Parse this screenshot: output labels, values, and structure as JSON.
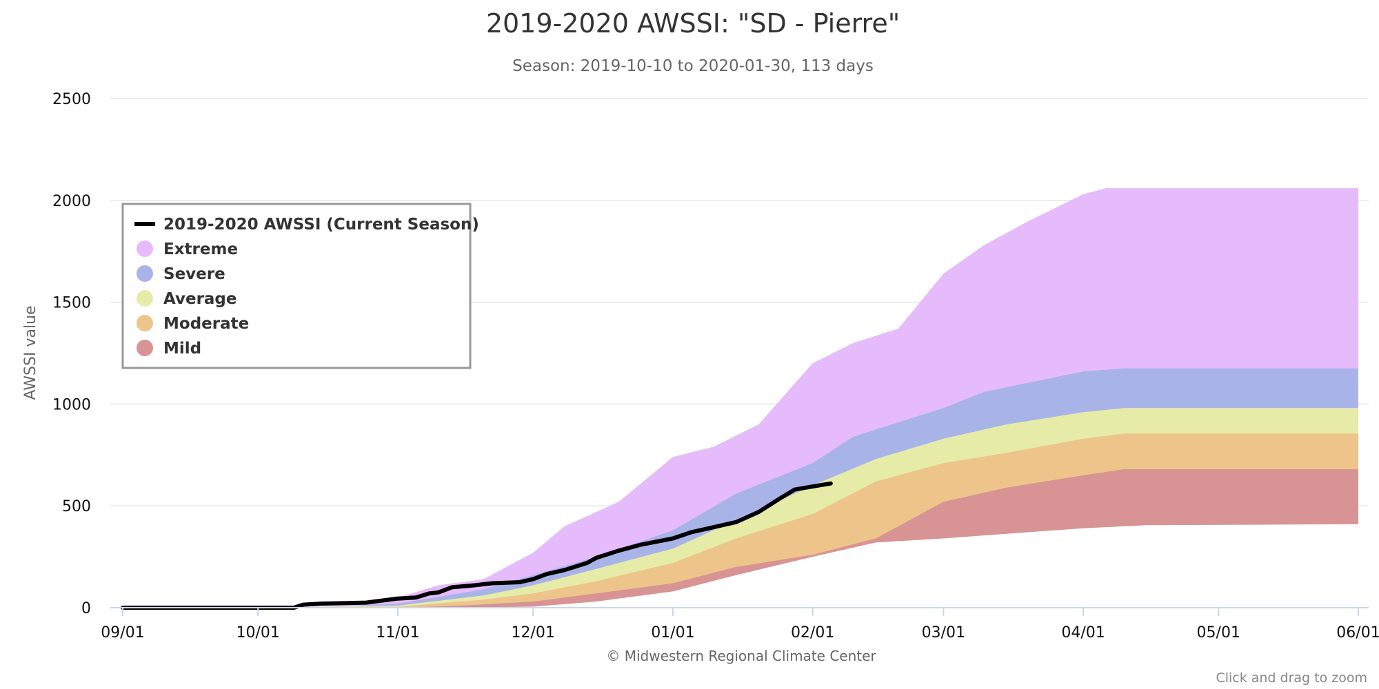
{
  "chart_data": {
    "type": "area",
    "title": "2019-2020 AWSSI: \"SD - Pierre\"",
    "subtitle": "Season: 2019-10-10 to 2020-01-30, 113 days",
    "ylabel": "AWSSI value",
    "xlabel": "",
    "credits": "© Midwestern Regional Climate Center",
    "zoom_hint": "Click and drag to zoom",
    "ylim": [
      0,
      2500
    ],
    "xlim": [
      "2019-09-01",
      "2020-06-01"
    ],
    "y_ticks": [
      0,
      500,
      1000,
      1500,
      2000,
      2500
    ],
    "x_ticks": [
      {
        "date": "2019-09-01",
        "label": "09/01"
      },
      {
        "date": "2019-10-01",
        "label": "10/01"
      },
      {
        "date": "2019-11-01",
        "label": "11/01"
      },
      {
        "date": "2019-12-01",
        "label": "12/01"
      },
      {
        "date": "2020-01-01",
        "label": "01/01"
      },
      {
        "date": "2020-02-01",
        "label": "02/01"
      },
      {
        "date": "2020-03-01",
        "label": "03/01"
      },
      {
        "date": "2020-04-01",
        "label": "04/01"
      },
      {
        "date": "2020-05-01",
        "label": "05/01"
      },
      {
        "date": "2020-06-01",
        "label": "06/01"
      }
    ],
    "grid": true,
    "legend_position": "top-left",
    "bands": [
      {
        "name": "Extreme",
        "color": "#e6bbfb",
        "points": [
          [
            "2019-09-01",
            0
          ],
          [
            "2019-10-01",
            0
          ],
          [
            "2019-10-15",
            5
          ],
          [
            "2019-10-25",
            20
          ],
          [
            "2019-11-01",
            50
          ],
          [
            "2019-11-10",
            110
          ],
          [
            "2019-11-20",
            140
          ],
          [
            "2019-12-01",
            270
          ],
          [
            "2019-12-08",
            400
          ],
          [
            "2019-12-20",
            520
          ],
          [
            "2020-01-01",
            740
          ],
          [
            "2020-01-10",
            790
          ],
          [
            "2020-01-20",
            900
          ],
          [
            "2020-02-01",
            1200
          ],
          [
            "2020-02-10",
            1300
          ],
          [
            "2020-02-20",
            1370
          ],
          [
            "2020-03-01",
            1640
          ],
          [
            "2020-03-10",
            1780
          ],
          [
            "2020-03-20",
            1900
          ],
          [
            "2020-04-01",
            2030
          ],
          [
            "2020-04-06",
            2060
          ],
          [
            "2020-06-01",
            2060
          ]
        ]
      },
      {
        "name": "Severe",
        "color": "#a8b4e8",
        "points": [
          [
            "2019-09-01",
            0
          ],
          [
            "2019-10-01",
            0
          ],
          [
            "2019-10-15",
            2
          ],
          [
            "2019-11-01",
            20
          ],
          [
            "2019-11-20",
            90
          ],
          [
            "2019-12-01",
            160
          ],
          [
            "2019-12-15",
            250
          ],
          [
            "2020-01-01",
            380
          ],
          [
            "2020-01-15",
            560
          ],
          [
            "2020-02-01",
            710
          ],
          [
            "2020-02-10",
            840
          ],
          [
            "2020-03-01",
            980
          ],
          [
            "2020-03-10",
            1060
          ],
          [
            "2020-04-01",
            1160
          ],
          [
            "2020-04-10",
            1175
          ],
          [
            "2020-06-01",
            1175
          ]
        ]
      },
      {
        "name": "Average",
        "color": "#e6eca8",
        "points": [
          [
            "2019-09-01",
            0
          ],
          [
            "2019-10-01",
            0
          ],
          [
            "2019-11-01",
            10
          ],
          [
            "2019-11-20",
            60
          ],
          [
            "2019-12-01",
            110
          ],
          [
            "2019-12-15",
            190
          ],
          [
            "2020-01-01",
            290
          ],
          [
            "2020-01-15",
            430
          ],
          [
            "2020-02-01",
            600
          ],
          [
            "2020-02-15",
            730
          ],
          [
            "2020-03-01",
            830
          ],
          [
            "2020-03-15",
            900
          ],
          [
            "2020-04-01",
            960
          ],
          [
            "2020-04-10",
            980
          ],
          [
            "2020-06-01",
            980
          ]
        ]
      },
      {
        "name": "Moderate",
        "color": "#edc58a",
        "points": [
          [
            "2019-09-01",
            0
          ],
          [
            "2019-10-01",
            0
          ],
          [
            "2019-11-01",
            5
          ],
          [
            "2019-11-20",
            40
          ],
          [
            "2019-12-01",
            70
          ],
          [
            "2019-12-15",
            130
          ],
          [
            "2020-01-01",
            220
          ],
          [
            "2020-01-15",
            340
          ],
          [
            "2020-02-01",
            460
          ],
          [
            "2020-02-15",
            620
          ],
          [
            "2020-03-01",
            710
          ],
          [
            "2020-03-15",
            760
          ],
          [
            "2020-04-01",
            830
          ],
          [
            "2020-04-10",
            855
          ],
          [
            "2020-06-01",
            855
          ]
        ]
      },
      {
        "name": "Mild",
        "color": "#d89494",
        "points": [
          [
            "2019-09-01",
            0
          ],
          [
            "2019-10-01",
            0
          ],
          [
            "2019-11-01",
            0
          ],
          [
            "2019-11-15",
            10
          ],
          [
            "2019-12-01",
            30
          ],
          [
            "2019-12-15",
            70
          ],
          [
            "2020-01-01",
            120
          ],
          [
            "2020-01-15",
            200
          ],
          [
            "2020-02-01",
            260
          ],
          [
            "2020-02-15",
            340
          ],
          [
            "2020-03-01",
            520
          ],
          [
            "2020-03-15",
            590
          ],
          [
            "2020-04-01",
            650
          ],
          [
            "2020-04-10",
            680
          ],
          [
            "2020-06-01",
            680
          ]
        ]
      }
    ],
    "floor": {
      "color": "#ffffff",
      "points": [
        [
          "2019-09-01",
          0
        ],
        [
          "2019-11-15",
          0
        ],
        [
          "2019-12-01",
          5
        ],
        [
          "2019-12-15",
          30
        ],
        [
          "2020-01-01",
          80
        ],
        [
          "2020-01-15",
          160
        ],
        [
          "2020-02-01",
          250
        ],
        [
          "2020-02-15",
          320
        ],
        [
          "2020-03-01",
          340
        ],
        [
          "2020-03-10",
          355
        ],
        [
          "2020-04-01",
          390
        ],
        [
          "2020-04-15",
          405
        ],
        [
          "2020-06-01",
          410
        ]
      ]
    },
    "series": [
      {
        "name": "2019-2020 AWSSI (Current Season)",
        "color": "#000000",
        "points": [
          [
            "2019-09-01",
            0
          ],
          [
            "2019-10-09",
            0
          ],
          [
            "2019-10-11",
            15
          ],
          [
            "2019-10-15",
            20
          ],
          [
            "2019-10-25",
            25
          ],
          [
            "2019-11-01",
            45
          ],
          [
            "2019-11-05",
            50
          ],
          [
            "2019-11-08",
            70
          ],
          [
            "2019-11-10",
            75
          ],
          [
            "2019-11-13",
            100
          ],
          [
            "2019-11-18",
            110
          ],
          [
            "2019-11-22",
            120
          ],
          [
            "2019-11-28",
            125
          ],
          [
            "2019-12-01",
            140
          ],
          [
            "2019-12-04",
            165
          ],
          [
            "2019-12-08",
            185
          ],
          [
            "2019-12-13",
            220
          ],
          [
            "2019-12-15",
            245
          ],
          [
            "2019-12-20",
            280
          ],
          [
            "2019-12-25",
            310
          ],
          [
            "2020-01-01",
            340
          ],
          [
            "2020-01-05",
            370
          ],
          [
            "2020-01-10",
            395
          ],
          [
            "2020-01-15",
            420
          ],
          [
            "2020-01-20",
            470
          ],
          [
            "2020-01-25",
            540
          ],
          [
            "2020-01-28",
            580
          ],
          [
            "2020-02-01",
            595
          ],
          [
            "2020-02-05",
            610
          ]
        ]
      }
    ]
  }
}
